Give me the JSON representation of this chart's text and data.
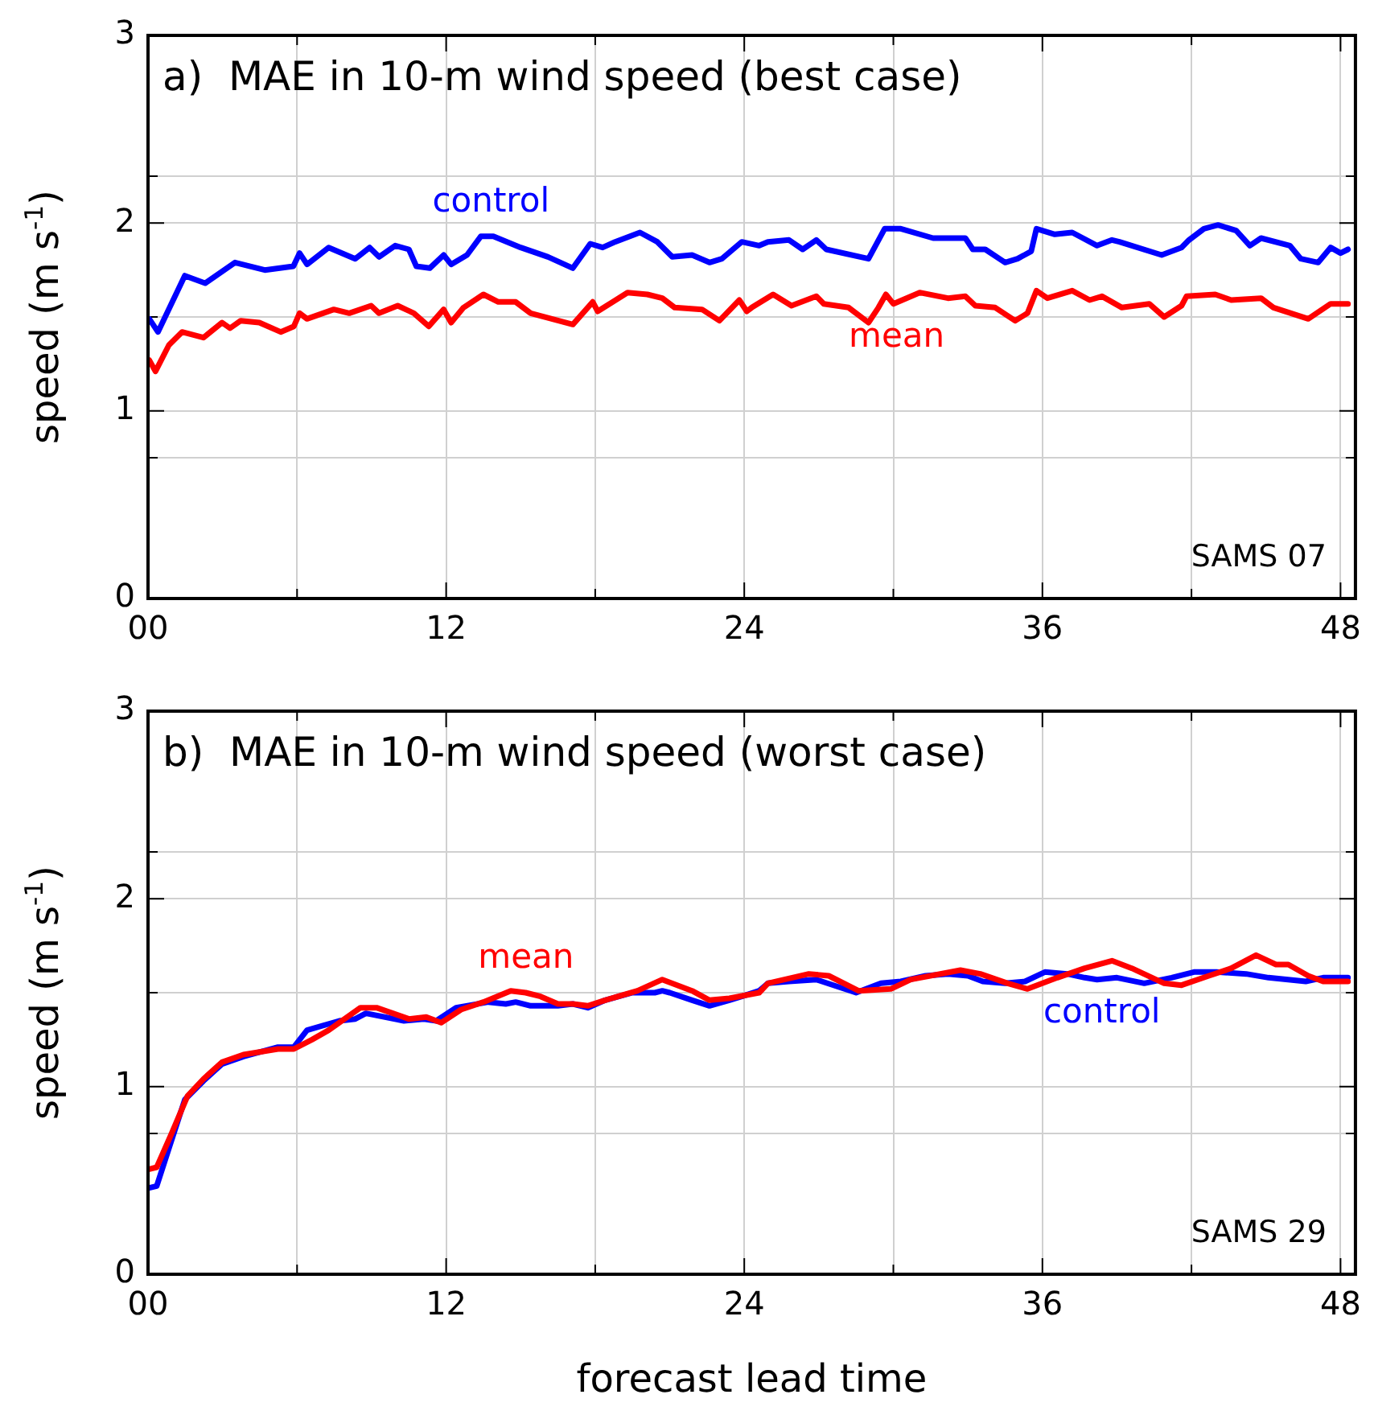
{
  "chart_data": [
    {
      "type": "line",
      "title": "a)  MAE in 10-m wind speed (best case)",
      "ylabel": "speed (m s$^{-1}$)",
      "xlim": [
        0,
        48.6
      ],
      "ylim": [
        0,
        3
      ],
      "xticks": [
        {
          "value": 0,
          "label": "00"
        },
        {
          "value": 6,
          "label": null
        },
        12,
        {
          "value": 18,
          "label": null
        },
        24,
        {
          "value": 30,
          "label": null
        },
        36,
        {
          "value": 42,
          "label": null
        },
        48
      ],
      "yticks": [
        0,
        {
          "value": 0.75,
          "label": null
        },
        1,
        {
          "value": 1.5,
          "label": null
        },
        2,
        {
          "value": 2.25,
          "label": null
        },
        3
      ],
      "grid": true,
      "legend": false,
      "marker": "none",
      "line_style": "solid",
      "series": [
        {
          "name": "control",
          "color": "#0000ff",
          "x": [
            0.05,
            0.4,
            1.48,
            2.3,
            3.5,
            4.7,
            5.85,
            6.1,
            6.4,
            7.27,
            8.34,
            8.92,
            9.3,
            9.95,
            10.5,
            10.8,
            11.34,
            11.9,
            12.2,
            12.84,
            13.4,
            13.9,
            15.0,
            16.1,
            17.1,
            17.8,
            18.3,
            18.8,
            19.8,
            20.5,
            21.1,
            21.9,
            22.6,
            23.1,
            23.9,
            24.6,
            24.95,
            25.8,
            26.35,
            26.9,
            27.3,
            29.0,
            29.65,
            30.3,
            31.6,
            32.9,
            33.2,
            33.7,
            34.5,
            35.0,
            35.55,
            35.76,
            36.5,
            37.2,
            38.2,
            38.8,
            39.1,
            40.8,
            41.6,
            41.9,
            42.5,
            43.07,
            43.8,
            44.35,
            44.8,
            45.96,
            46.4,
            47.1,
            47.6,
            48.0,
            48.3
          ],
          "values": [
            1.49,
            1.42,
            1.72,
            1.68,
            1.79,
            1.75,
            1.77,
            1.84,
            1.78,
            1.87,
            1.81,
            1.87,
            1.82,
            1.88,
            1.86,
            1.77,
            1.76,
            1.83,
            1.78,
            1.83,
            1.93,
            1.93,
            1.87,
            1.82,
            1.76,
            1.89,
            1.87,
            1.9,
            1.95,
            1.9,
            1.82,
            1.83,
            1.79,
            1.81,
            1.9,
            1.88,
            1.9,
            1.91,
            1.86,
            1.91,
            1.86,
            1.81,
            1.97,
            1.97,
            1.92,
            1.92,
            1.86,
            1.86,
            1.79,
            1.81,
            1.85,
            1.97,
            1.94,
            1.95,
            1.88,
            1.91,
            1.9,
            1.83,
            1.87,
            1.91,
            1.97,
            1.99,
            1.96,
            1.88,
            1.92,
            1.88,
            1.81,
            1.79,
            1.87,
            1.84,
            1.86
          ]
        },
        {
          "name": "mean",
          "color": "#ff0000",
          "x": [
            0.05,
            0.3,
            0.84,
            1.37,
            2.23,
            2.98,
            3.3,
            3.73,
            4.48,
            5.34,
            5.87,
            6.1,
            6.4,
            7.48,
            8.1,
            8.98,
            9.3,
            10.05,
            10.7,
            11.3,
            11.9,
            12.2,
            12.7,
            13.5,
            14.1,
            14.8,
            15.4,
            17.1,
            17.9,
            18.1,
            19.3,
            20.1,
            20.7,
            21.2,
            22.3,
            23.0,
            23.8,
            24.1,
            24.3,
            25.16,
            25.9,
            26.9,
            27.2,
            28.2,
            29.0,
            29.4,
            29.7,
            30.0,
            31.06,
            32.2,
            32.9,
            33.3,
            34.1,
            34.9,
            35.4,
            35.76,
            36.2,
            37.2,
            37.9,
            38.4,
            39.2,
            40.3,
            40.9,
            41.6,
            41.8,
            42.96,
            43.6,
            44.8,
            45.3,
            46.7,
            47.6,
            48.3
          ],
          "values": [
            1.27,
            1.21,
            1.35,
            1.42,
            1.39,
            1.47,
            1.44,
            1.48,
            1.47,
            1.42,
            1.45,
            1.52,
            1.49,
            1.54,
            1.52,
            1.56,
            1.52,
            1.56,
            1.52,
            1.45,
            1.54,
            1.47,
            1.55,
            1.62,
            1.58,
            1.58,
            1.52,
            1.46,
            1.58,
            1.53,
            1.63,
            1.62,
            1.6,
            1.55,
            1.54,
            1.48,
            1.59,
            1.53,
            1.55,
            1.62,
            1.56,
            1.61,
            1.57,
            1.55,
            1.47,
            1.55,
            1.62,
            1.57,
            1.63,
            1.6,
            1.61,
            1.56,
            1.55,
            1.48,
            1.52,
            1.64,
            1.6,
            1.64,
            1.59,
            1.61,
            1.55,
            1.57,
            1.5,
            1.56,
            1.61,
            1.62,
            1.59,
            1.6,
            1.55,
            1.49,
            1.57,
            1.57
          ]
        }
      ],
      "annotations": [
        "SAMS 07"
      ]
    },
    {
      "type": "line",
      "title": "b)  MAE in 10-m wind speed (worst case)",
      "xlabel": "forecast lead time",
      "ylabel": "speed (m s$^{-1}$)",
      "xlim": [
        0,
        48.6
      ],
      "ylim": [
        0,
        3
      ],
      "xticks": [
        {
          "value": 0,
          "label": "00"
        },
        {
          "value": 6,
          "label": null
        },
        12,
        {
          "value": 18,
          "label": null
        },
        24,
        {
          "value": 30,
          "label": null
        },
        36,
        {
          "value": 42,
          "label": null
        },
        48
      ],
      "yticks": [
        0,
        {
          "value": 0.75,
          "label": null
        },
        1,
        {
          "value": 1.5,
          "label": null
        },
        2,
        {
          "value": 2.25,
          "label": null
        },
        3
      ],
      "grid": true,
      "legend": false,
      "marker": "none",
      "line_style": "solid",
      "series": [
        {
          "name": "mean",
          "color": "#ff0000",
          "x": [
            0.05,
            0.35,
            0.95,
            1.59,
            2.23,
            2.98,
            3.84,
            5.23,
            5.87,
            6.6,
            7.27,
            8.55,
            9.2,
            10.5,
            11.2,
            11.8,
            12.6,
            13.5,
            14.6,
            15.2,
            15.8,
            16.5,
            17.1,
            17.7,
            18.4,
            19.7,
            20.7,
            21.9,
            22.6,
            23.4,
            24.6,
            24.95,
            26.6,
            27.4,
            28.6,
            29.9,
            30.7,
            32.7,
            33.5,
            34.6,
            35.4,
            36.6,
            37.7,
            38.8,
            39.6,
            40.9,
            41.6,
            42.7,
            43.6,
            44.6,
            45.4,
            45.9,
            46.7,
            47.3,
            48.3
          ],
          "values": [
            0.56,
            0.57,
            0.75,
            0.95,
            1.04,
            1.13,
            1.17,
            1.2,
            1.2,
            1.25,
            1.3,
            1.42,
            1.42,
            1.36,
            1.37,
            1.34,
            1.41,
            1.45,
            1.51,
            1.5,
            1.48,
            1.44,
            1.44,
            1.43,
            1.46,
            1.51,
            1.57,
            1.51,
            1.46,
            1.47,
            1.5,
            1.55,
            1.6,
            1.59,
            1.51,
            1.52,
            1.57,
            1.62,
            1.6,
            1.55,
            1.52,
            1.58,
            1.63,
            1.67,
            1.63,
            1.55,
            1.54,
            1.59,
            1.63,
            1.7,
            1.65,
            1.65,
            1.59,
            1.56,
            1.56
          ]
        },
        {
          "name": "control",
          "color": "#0000ff",
          "x": [
            0.05,
            0.35,
            0.84,
            1.48,
            2.23,
            2.98,
            3.84,
            5.23,
            5.87,
            6.4,
            7.7,
            8.34,
            8.77,
            10.3,
            11.1,
            11.6,
            12.4,
            13.7,
            14.4,
            14.8,
            15.4,
            16.5,
            17.1,
            17.7,
            18.4,
            19.5,
            20.4,
            20.7,
            21.0,
            21.9,
            22.6,
            23.4,
            23.9,
            24.6,
            24.95,
            25.8,
            26.9,
            28.5,
            29.5,
            30.3,
            31.3,
            32.2,
            33.0,
            33.6,
            34.5,
            35.3,
            36.1,
            37.0,
            37.7,
            38.2,
            39.0,
            40.1,
            41.2,
            42.1,
            43.0,
            44.2,
            45.1,
            46.6,
            47.3,
            48.3
          ],
          "values": [
            0.46,
            0.47,
            0.67,
            0.93,
            1.03,
            1.12,
            1.16,
            1.21,
            1.21,
            1.3,
            1.35,
            1.36,
            1.39,
            1.35,
            1.36,
            1.35,
            1.42,
            1.45,
            1.44,
            1.45,
            1.43,
            1.43,
            1.44,
            1.42,
            1.46,
            1.5,
            1.5,
            1.51,
            1.5,
            1.46,
            1.43,
            1.46,
            1.48,
            1.51,
            1.55,
            1.56,
            1.57,
            1.5,
            1.55,
            1.56,
            1.59,
            1.6,
            1.59,
            1.56,
            1.55,
            1.56,
            1.61,
            1.6,
            1.58,
            1.57,
            1.58,
            1.55,
            1.58,
            1.61,
            1.61,
            1.6,
            1.58,
            1.56,
            1.58,
            1.58
          ]
        }
      ],
      "annotations": [
        "SAMS 29"
      ]
    }
  ]
}
